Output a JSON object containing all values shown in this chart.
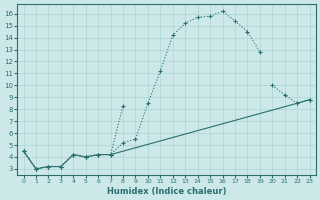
{
  "xlabel": "Humidex (Indice chaleur)",
  "bg_color": "#cce8e8",
  "line_color": "#2a6e6e",
  "grid_color": "#aad4d4",
  "xlim": [
    -0.5,
    23.5
  ],
  "ylim": [
    2.5,
    16.8
  ],
  "xticks": [
    0,
    1,
    2,
    3,
    4,
    5,
    6,
    7,
    8,
    9,
    10,
    11,
    12,
    13,
    14,
    15,
    16,
    17,
    18,
    19,
    20,
    21,
    22,
    23
  ],
  "yticks": [
    3,
    4,
    5,
    6,
    7,
    8,
    9,
    10,
    11,
    12,
    13,
    14,
    15,
    16
  ],
  "line1_x": [
    0,
    1,
    2,
    3,
    4,
    5,
    6,
    7,
    8,
    9,
    10,
    11,
    12,
    13,
    14,
    15,
    16,
    17,
    18,
    19
  ],
  "line1_y": [
    4.5,
    3.0,
    3.2,
    3.2,
    4.2,
    4.0,
    4.2,
    4.2,
    5.2,
    5.5,
    8.5,
    11.2,
    14.2,
    15.2,
    15.7,
    15.8,
    16.2,
    15.4,
    14.5,
    12.8
  ],
  "line2_x": [
    0,
    1,
    2,
    3,
    4,
    5,
    6,
    7,
    8,
    20,
    21,
    22,
    23
  ],
  "line2_y": [
    4.5,
    3.0,
    3.2,
    3.2,
    4.2,
    4.0,
    4.2,
    4.2,
    8.3,
    10.0,
    9.2,
    8.5,
    8.8
  ],
  "line3_x": [
    0,
    1,
    2,
    3,
    4,
    5,
    6,
    7,
    22,
    23
  ],
  "line3_y": [
    4.5,
    3.0,
    3.2,
    3.2,
    4.2,
    4.0,
    4.2,
    4.2,
    8.5,
    8.8
  ]
}
